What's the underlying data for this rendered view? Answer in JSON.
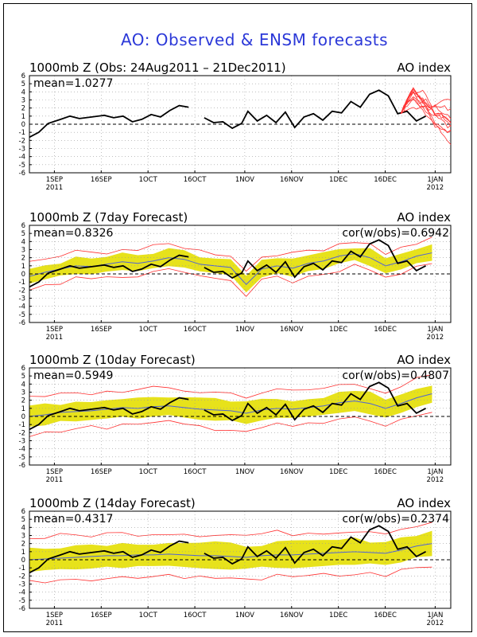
{
  "main_title": "AO: Observed & ENSM forecasts",
  "colors": {
    "observed": "#000000",
    "ensemble_line": "#ff3030",
    "ensemble_mean": "#4f63d6",
    "spread_fill": "#e7e21b",
    "title": "#2b38d8"
  },
  "x_ticks": [
    {
      "label": "1SEP",
      "sub": "2011"
    },
    {
      "label": "16SEP",
      "sub": ""
    },
    {
      "label": "1OCT",
      "sub": ""
    },
    {
      "label": "16OCT",
      "sub": ""
    },
    {
      "label": "1NOV",
      "sub": ""
    },
    {
      "label": "16NOV",
      "sub": ""
    },
    {
      "label": "1DEC",
      "sub": ""
    },
    {
      "label": "16DEC",
      "sub": ""
    },
    {
      "label": "1JAN",
      "sub": "2012"
    }
  ],
  "y_ticks": [
    "6",
    "5",
    "4",
    "3",
    "2",
    "1",
    "0",
    "-1",
    "-2",
    "-3",
    "-4",
    "-5",
    "-6"
  ],
  "panels": [
    {
      "title": "1000mb Z (Obs: 24Aug2011 – 21Dec2011)",
      "right": "AO index",
      "mean_text": "mean=1.0277",
      "cor_text": ""
    },
    {
      "title": "1000mb Z (7day Forecast)",
      "right": "AO index",
      "mean_text": "mean=0.8326",
      "cor_text": "cor(w/obs)=0.6942"
    },
    {
      "title": "1000mb Z (10day Forecast)",
      "right": "AO index",
      "mean_text": "mean=0.5949",
      "cor_text": "cor(w/obs)=0.4807"
    },
    {
      "title": "1000mb Z (14day Forecast)",
      "right": "AO index",
      "mean_text": "mean=0.4317",
      "cor_text": "cor(w/obs)=0.2374"
    }
  ],
  "chart_data": [
    {
      "type": "line",
      "title": "1000mb Z (Obs: 24Aug2011 – 21Dec2011)",
      "ylabel": "",
      "ylim": [
        -6,
        6
      ],
      "x_range": [
        "2011-08-24",
        "2012-01-06"
      ],
      "series": [],
      "observed_points": [
        [
          "2011-08-24",
          -1.6
        ],
        [
          "2011-08-27",
          -1.0
        ],
        [
          "2011-08-30",
          0.1
        ],
        [
          "2011-09-03",
          0.6
        ],
        [
          "2011-09-06",
          1.0
        ],
        [
          "2011-09-09",
          0.7
        ],
        [
          "2011-09-13",
          0.9
        ],
        [
          "2011-09-17",
          1.1
        ],
        [
          "2011-09-20",
          0.8
        ],
        [
          "2011-09-23",
          1.0
        ],
        [
          "2011-09-26",
          0.3
        ],
        [
          "2011-09-29",
          0.6
        ],
        [
          "2011-10-02",
          1.2
        ],
        [
          "2011-10-05",
          0.9
        ],
        [
          "2011-10-08",
          1.7
        ],
        [
          "2011-10-11",
          2.3
        ],
        [
          "2011-10-14",
          2.1
        ],
        [
          "2011-10-17",
          null
        ],
        [
          "2011-10-19",
          0.8
        ],
        [
          "2011-10-22",
          0.2
        ],
        [
          "2011-10-25",
          0.3
        ],
        [
          "2011-10-28",
          -0.5
        ],
        [
          "2011-10-31",
          0.1
        ],
        [
          "2011-11-02",
          1.6
        ],
        [
          "2011-11-05",
          0.4
        ],
        [
          "2011-11-08",
          1.1
        ],
        [
          "2011-11-11",
          0.2
        ],
        [
          "2011-11-14",
          1.5
        ],
        [
          "2011-11-17",
          -0.4
        ],
        [
          "2011-11-20",
          0.9
        ],
        [
          "2011-11-23",
          1.3
        ],
        [
          "2011-11-26",
          0.5
        ],
        [
          "2011-11-29",
          1.6
        ],
        [
          "2011-12-02",
          1.4
        ],
        [
          "2011-12-05",
          2.8
        ],
        [
          "2011-12-08",
          2.1
        ],
        [
          "2011-12-11",
          3.7
        ],
        [
          "2011-12-14",
          4.2
        ],
        [
          "2011-12-17",
          3.5
        ],
        [
          "2011-12-20",
          1.3
        ],
        [
          "2011-12-23",
          1.6
        ],
        [
          "2011-12-26",
          0.4
        ],
        [
          "2011-12-29",
          1.0
        ]
      ],
      "forecast_plume_note": "red ensemble members after 2011-12-21 spreading from about -2 to 4.5"
    },
    {
      "type": "line",
      "title": "1000mb Z (7day Forecast)",
      "ylim": [
        -6,
        6
      ],
      "series": [
        {
          "name": "observed",
          "values_ref": "observed"
        },
        {
          "name": "ensemble mean",
          "values": [
            -0.3,
            0.2,
            0.6,
            1.0,
            0.9,
            1.2,
            1.5,
            1.3,
            1.6,
            2.0,
            1.8,
            1.2,
            1.0,
            0.8,
            -1.3,
            0.6,
            1.0,
            0.7,
            1.3,
            1.6,
            2.2,
            2.5,
            2.0,
            1.0,
            1.5,
            2.2,
            2.6
          ]
        }
      ]
    },
    {
      "type": "line",
      "title": "1000mb Z (10day Forecast)",
      "ylim": [
        -6,
        6
      ],
      "series": [
        {
          "name": "observed",
          "values_ref": "observed"
        },
        {
          "name": "ensemble mean",
          "values": [
            0.0,
            0.2,
            0.5,
            0.6,
            0.7,
            0.9,
            1.1,
            1.0,
            1.2,
            1.3,
            1.1,
            0.9,
            0.8,
            0.7,
            0.4,
            0.8,
            1.0,
            0.9,
            1.1,
            1.3,
            1.7,
            1.9,
            1.6,
            1.0,
            1.6,
            2.3,
            2.8
          ]
        }
      ]
    },
    {
      "type": "line",
      "title": "1000mb Z (14day Forecast)",
      "ylim": [
        -6,
        6
      ],
      "series": [
        {
          "name": "observed",
          "values_ref": "observed"
        },
        {
          "name": "ensemble mean",
          "values": [
            0.0,
            0.1,
            0.2,
            0.3,
            0.4,
            0.5,
            0.5,
            0.6,
            0.6,
            0.7,
            0.6,
            0.5,
            0.5,
            0.4,
            0.3,
            0.5,
            0.6,
            0.6,
            0.7,
            0.8,
            0.9,
            1.0,
            0.9,
            0.8,
            1.2,
            1.7,
            2.0
          ]
        }
      ]
    }
  ]
}
